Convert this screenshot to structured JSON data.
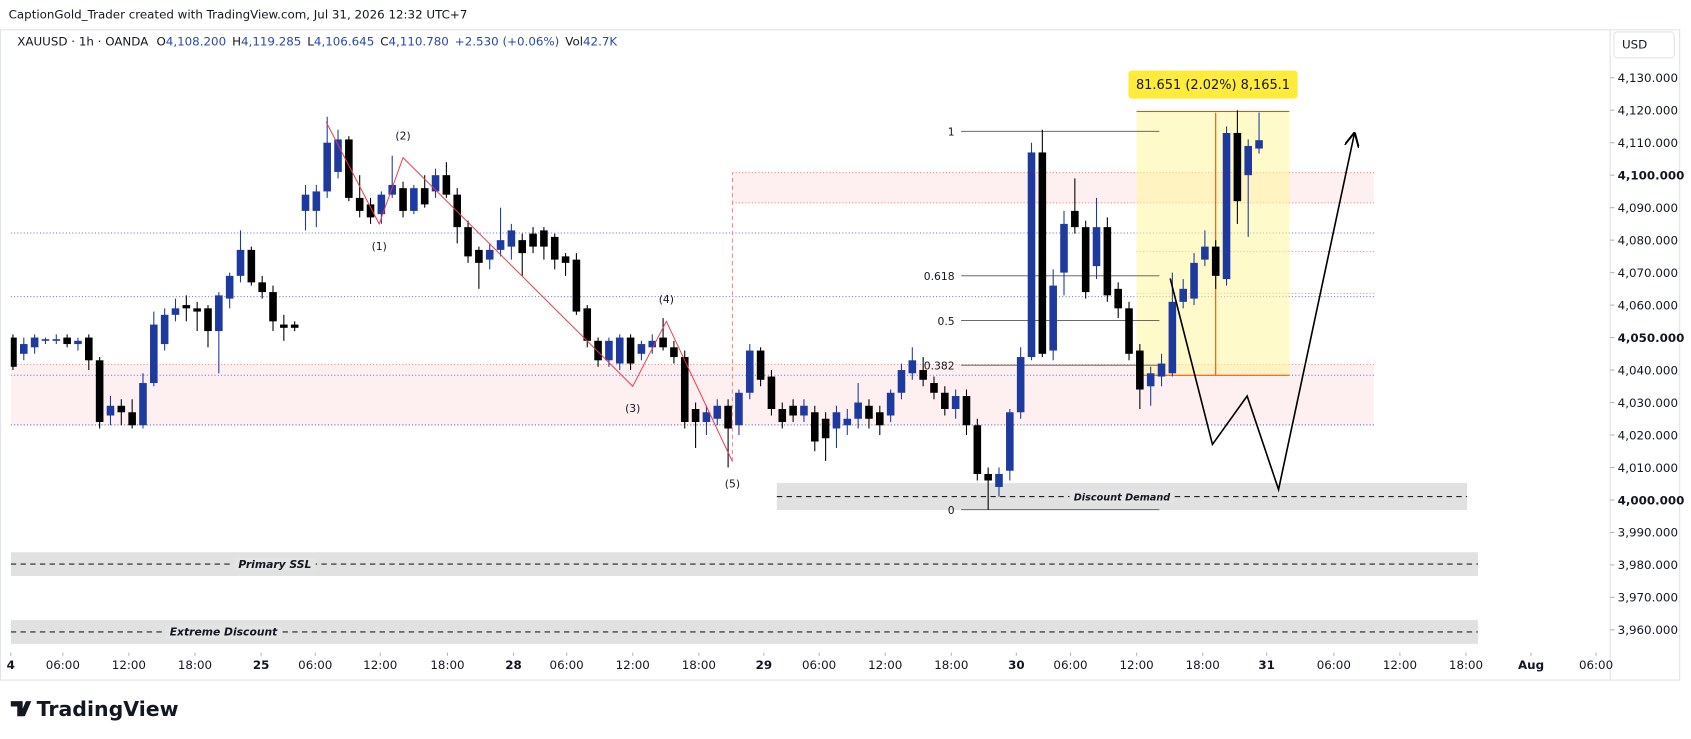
{
  "header": {
    "credit": "CaptionGold_Trader created with TradingView.com, Jul 31, 2026 12:32 UTC+7",
    "symbol": "XAUUSD · 1h · OANDA",
    "ohlc": [
      {
        "key": "O",
        "value": "4,108.200"
      },
      {
        "key": "H",
        "value": "4,119.285"
      },
      {
        "key": "L",
        "value": "4,106.645"
      },
      {
        "key": "C",
        "value": "4,110.780"
      }
    ],
    "change": "+2.530 (+0.06%)",
    "vol_key": "Vol",
    "vol": "42.7K",
    "currency": "USD"
  },
  "chart_data": {
    "type": "candlestick",
    "up_color": "#1f3a9e",
    "down_color": "#000000",
    "x": [
      0,
      1,
      2,
      3,
      4,
      5,
      6,
      7,
      8,
      9,
      10,
      11,
      12,
      13,
      14,
      15,
      16,
      17,
      18,
      19,
      20,
      21,
      22,
      23,
      24,
      25,
      26,
      27,
      28,
      29,
      30,
      31,
      32,
      33,
      34,
      35,
      36,
      37,
      38,
      39,
      40,
      41,
      42,
      43,
      44,
      45,
      46,
      47,
      48,
      49,
      50,
      51,
      52,
      53,
      54,
      55,
      56,
      57,
      58,
      59,
      60,
      61,
      62,
      63,
      64,
      65,
      66,
      67,
      68,
      69,
      70,
      71,
      72,
      73,
      74,
      75,
      76,
      77,
      78,
      79,
      80,
      81,
      82,
      83,
      84,
      85,
      86,
      87,
      88,
      89,
      90,
      91,
      92,
      93,
      94,
      95,
      96,
      97,
      98,
      99,
      100,
      101,
      102,
      103,
      104,
      105,
      106,
      107,
      108,
      109,
      110,
      111,
      112,
      113,
      114,
      115
    ],
    "open": [
      4050,
      4045,
      4047,
      4049,
      4049,
      4050,
      4048,
      4050,
      4043,
      4026,
      4029,
      4027,
      4023,
      4036,
      4048,
      4057,
      4060,
      4059,
      4059,
      4052,
      4062,
      4069,
      4077,
      4067,
      4064,
      4054,
      4054,
      4089,
      4089,
      4095,
      4101,
      4111,
      4093,
      4091,
      4088,
      4094,
      4096,
      4089,
      4096,
      4095,
      4100,
      4094,
      4084,
      4077,
      4074,
      4077,
      4078,
      4080,
      4082,
      4083,
      4081,
      4075,
      4074,
      4059,
      4049,
      4043,
      4042,
      4050,
      4045,
      4047,
      4050,
      4047,
      4044,
      4028,
      4024,
      4025,
      4029,
      4023,
      4033,
      4046,
      4038,
      4028,
      4029,
      4026,
      4027,
      4025,
      4022,
      4023,
      4025,
      4029,
      4027,
      4026,
      4033,
      4039,
      4040,
      4036,
      4033,
      4028,
      4032,
      4023,
      4008,
      4004,
      4009,
      4027,
      4044,
      4107,
      4046,
      4070,
      4089,
      4084,
      4072,
      4084,
      4065,
      4059,
      4046,
      4035,
      4038,
      4039,
      4061,
      4062,
      4074,
      4078,
      4068,
      4113,
      4100,
      4108.2
    ],
    "high": [
      4051,
      4050,
      4051,
      4050,
      4051,
      4051,
      4050,
      4051,
      4044,
      4032,
      4031,
      4031,
      4039,
      4058,
      4059,
      4062,
      4063,
      4061,
      4060,
      4064,
      4070,
      4083,
      4078,
      4069,
      4066,
      4057,
      4055,
      4097,
      4097,
      4118,
      4114,
      4112,
      4100,
      4093,
      4095,
      4106,
      4098,
      4097,
      4100,
      4102,
      4104,
      4096,
      4086,
      4078,
      4079,
      4090,
      4085,
      4082,
      4084,
      4084,
      4082,
      4076,
      4076,
      4060,
      4050,
      4050,
      4051,
      4051,
      4049,
      4051,
      4056,
      4049,
      4046,
      4030,
      4029,
      4031,
      4031,
      4034,
      4048,
      4047,
      4040,
      4030,
      4031,
      4031,
      4029,
      4027,
      4029,
      4028,
      4036,
      4031,
      4029,
      4034,
      4042,
      4047,
      4044,
      4038,
      4035,
      4034,
      4034,
      4025,
      4010,
      4010,
      4028,
      4047,
      4110,
      4114,
      4071,
      4089,
      4099,
      4086,
      4093,
      4087,
      4067,
      4061,
      4048,
      4041,
      4045,
      4070,
      4068,
      4076,
      4083,
      4080,
      4115,
      4120,
      4111,
      4119.285
    ],
    "low": [
      4040,
      4043,
      4045,
      4048,
      4048,
      4047,
      4046,
      4040,
      4022,
      4023,
      4023,
      4022,
      4022,
      4035,
      4046,
      4055,
      4055,
      4052,
      4047,
      4039,
      4059,
      4067,
      4066,
      4062,
      4052,
      4049,
      4052,
      4083,
      4084,
      4093,
      4099,
      4092,
      4087,
      4085,
      4085,
      4093,
      4087,
      4088,
      4090,
      4093,
      4093,
      4079,
      4073,
      4065,
      4071,
      4075,
      4074,
      4069,
      4076,
      4074,
      4071,
      4069,
      4057,
      4047,
      4041,
      4041,
      4040,
      4040,
      4043,
      4045,
      4046,
      4042,
      4022,
      4016,
      4020,
      4023,
      4010,
      4020,
      4031,
      4035,
      4026,
      4022,
      4024,
      4024,
      4015,
      4012,
      4016,
      4020,
      4022,
      4022,
      4020,
      4024,
      4031,
      4037,
      4035,
      4031,
      4026,
      4025,
      4020,
      4006,
      3997,
      4001,
      4006,
      4025,
      4043,
      4044,
      4043,
      4063,
      4082,
      4062,
      4068,
      4061,
      4056,
      4043,
      4028,
      4029,
      4035,
      4038,
      4059,
      4060,
      4072,
      4065,
      4066,
      4085,
      4081,
      4106.645
    ],
    "close": [
      4041,
      4048,
      4050,
      4049.5,
      4049.5,
      4048,
      4049,
      4043,
      4024,
      4029,
      4027,
      4023,
      4036,
      4054,
      4057,
      4059,
      4059,
      4058,
      4052,
      4063,
      4069,
      4077,
      4067,
      4064,
      4055,
      4053,
      4053,
      4094,
      4095,
      4110,
      4111,
      4093,
      4089,
      4087,
      4094,
      4097,
      4089,
      4096,
      4091,
      4100,
      4094,
      4084,
      4075,
      4073,
      4077,
      4080,
      4083,
      4076,
      4078,
      4078,
      4074,
      4073,
      4058,
      4049,
      4043,
      4049,
      4050,
      4042,
      4048,
      4049,
      4047,
      4044,
      4024,
      4024,
      4027,
      4029,
      4022,
      4033,
      4046,
      4037,
      4028,
      4024,
      4026,
      4029,
      4018,
      4019,
      4027,
      4025,
      4030,
      4025,
      4023,
      4033,
      4040,
      4043,
      4037,
      4033,
      4028,
      4032,
      4023,
      4008,
      4006,
      4008,
      4027,
      4044,
      4107,
      4045,
      4066,
      4085,
      4084,
      4064,
      4084,
      4063,
      4059,
      4045,
      4034,
      4039,
      4042,
      4061,
      4065,
      4073,
      4078,
      4069,
      4113,
      4092,
      4109,
      4110.78
    ],
    "xlim": [
      -0.2,
      147.3
    ],
    "ylim": [
      3953,
      4144.6
    ],
    "xticks": [
      {
        "value": -0.2,
        "label": "4"
      },
      {
        "value": 4.6,
        "label": "06:00"
      },
      {
        "value": 10.7,
        "label": "12:00"
      },
      {
        "value": 16.8,
        "label": "18:00"
      },
      {
        "value": 22.9,
        "label": "25"
      },
      {
        "value": 27.9,
        "label": "06:00"
      },
      {
        "value": 33.9,
        "label": "12:00"
      },
      {
        "value": 40.1,
        "label": "18:00"
      },
      {
        "value": 46.2,
        "label": "28"
      },
      {
        "value": 51.1,
        "label": "06:00"
      },
      {
        "value": 57.2,
        "label": "12:00"
      },
      {
        "value": 63.3,
        "label": "18:00"
      },
      {
        "value": 69.3,
        "label": "29"
      },
      {
        "value": 74.4,
        "label": "06:00"
      },
      {
        "value": 80.5,
        "label": "12:00"
      },
      {
        "value": 86.6,
        "label": "18:00"
      },
      {
        "value": 92.6,
        "label": "30"
      },
      {
        "value": 97.6,
        "label": "06:00"
      },
      {
        "value": 103.7,
        "label": "12:00"
      },
      {
        "value": 109.8,
        "label": "18:00"
      },
      {
        "value": 115.7,
        "label": "31"
      },
      {
        "value": 121.9,
        "label": "06:00"
      },
      {
        "value": 128.0,
        "label": "12:00"
      },
      {
        "value": 134.1,
        "label": "18:00"
      },
      {
        "value": 140.1,
        "label": "Aug"
      },
      {
        "value": 146.1,
        "label": "06:00"
      }
    ],
    "yticks": [
      {
        "value": 4130,
        "label": "4,130.000"
      },
      {
        "value": 4120,
        "label": "4,120.000"
      },
      {
        "value": 4110,
        "label": "4,110.000"
      },
      {
        "value": 4100,
        "label": "4,100.000"
      },
      {
        "value": 4090,
        "label": "4,090.000"
      },
      {
        "value": 4080,
        "label": "4,080.000"
      },
      {
        "value": 4070,
        "label": "4,070.000"
      },
      {
        "value": 4060,
        "label": "4,060.000"
      },
      {
        "value": 4050,
        "label": "4,050.000"
      },
      {
        "value": 4040,
        "label": "4,040.000"
      },
      {
        "value": 4030,
        "label": "4,030.000"
      },
      {
        "value": 4020,
        "label": "4,020.000"
      },
      {
        "value": 4010,
        "label": "4,010.000"
      },
      {
        "value": 4000,
        "label": "4,000.000"
      },
      {
        "value": 3990,
        "label": "3,990.000"
      },
      {
        "value": 3980,
        "label": "3,980.000"
      },
      {
        "value": 3970,
        "label": "3,970.000"
      },
      {
        "value": 3960,
        "label": "3,960.000"
      }
    ],
    "fib": {
      "levels": [
        1,
        0.618,
        0.5,
        0.382,
        0
      ],
      "high": 4113.5,
      "low": 3997,
      "x0": 87.5,
      "x1": 105.8
    },
    "zones": [
      {
        "label": "Discount Demand",
        "top": 4005.2,
        "bottom": 3996.9,
        "x0": 70.5,
        "x1": 134.2
      },
      {
        "label": "Primary SSL",
        "top": 3983.9,
        "bottom": 3976.6,
        "x0": -0.2,
        "x1": 135.2
      },
      {
        "label": "Extreme Discount",
        "top": 3963,
        "bottom": 3955.7,
        "x0": -0.2,
        "x1": 135.2
      }
    ],
    "supply_zones": [
      {
        "top": 4100.8,
        "bottom": 4091.5,
        "x0": 66.4,
        "x1": 125.6
      },
      {
        "top": 4041.7,
        "bottom": 4023.1,
        "x0": -0.2,
        "x1": 125.6
      }
    ],
    "dotted_levels": [
      {
        "price": 4082.2,
        "x0": -0.2,
        "x1": 125.6,
        "color": "#5b7bd5"
      },
      {
        "price": 4062.6,
        "x0": -0.2,
        "x1": 125.6,
        "color": "#5b7bd5"
      },
      {
        "price": 4038.4,
        "x0": -0.2,
        "x1": 125.6,
        "color": "#5b7bd5"
      },
      {
        "price": 4023.1,
        "x0": -0.2,
        "x1": 125.6,
        "color": "#5b7bd5"
      },
      {
        "price": 4076.5,
        "x0": 103.7,
        "x1": 125.6,
        "color": "#f28b82"
      },
      {
        "price": 4063.6,
        "x0": 103.7,
        "x1": 125.6,
        "color": "#f28b82"
      }
    ],
    "range_tool": {
      "label": "81.651 (2.02%) 8,165.1",
      "top": 4119.6,
      "bottom": 4038.4,
      "x0": 103.7,
      "x1": 117.8,
      "arrow_x": 111
    },
    "waves": {
      "x": [
        28.9,
        33.8,
        36.0,
        57.2,
        60.3,
        66.4
      ],
      "y": [
        4116.4,
        4085,
        4105.4,
        4035,
        4055,
        4011.8
      ],
      "labels": [
        null,
        "(1)",
        "(2)",
        "(3)",
        "(4)",
        "(5)"
      ]
    },
    "projection": {
      "x": [
        106.8,
        110.7,
        113.9,
        116.8,
        123.8
      ],
      "y": [
        4068.2,
        4017.1,
        4032,
        4003.2,
        4112.8
      ]
    }
  },
  "footer": {
    "logo": "TradingView"
  }
}
